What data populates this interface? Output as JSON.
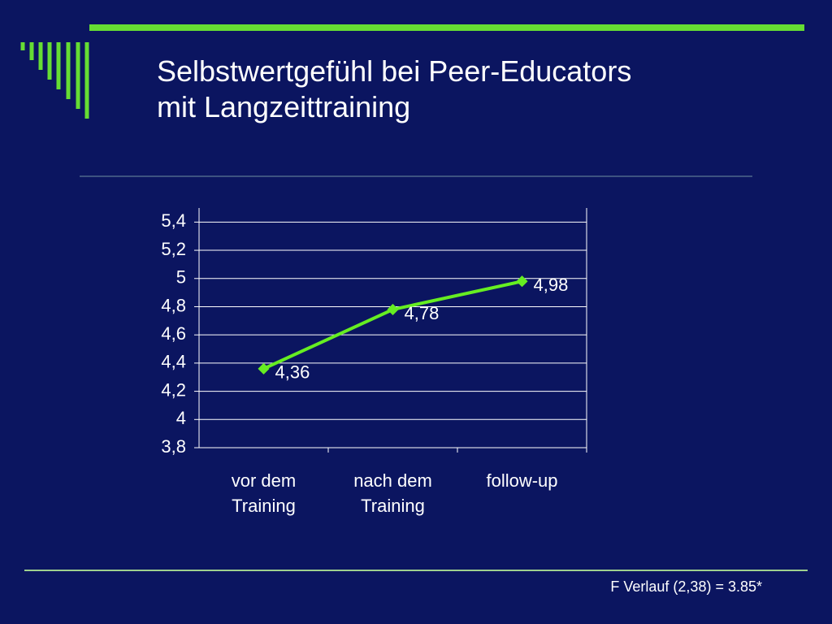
{
  "chart_data": {
    "type": "line",
    "title": "Selbstwertgefühl bei Peer-Educators mit Langzeittraining",
    "categories": [
      "vor dem Training",
      "nach dem Training",
      "follow-up"
    ],
    "series": [
      {
        "name": "Selbstwertgefühl",
        "color": "#66ee22",
        "values": [
          4.36,
          4.78,
          4.98
        ],
        "value_labels": [
          "4,36",
          "4,78",
          "4,98"
        ]
      }
    ],
    "ylim": [
      3.8,
      5.5
    ],
    "yticks": [
      {
        "value": 3.8,
        "label": "3,8"
      },
      4,
      {
        "value": 4.2,
        "label": "4,2"
      },
      {
        "value": 4.4,
        "label": "4,4"
      },
      {
        "value": 4.6,
        "label": "4,6"
      },
      {
        "value": 4.8,
        "label": "4,8"
      },
      5,
      {
        "value": 5.2,
        "label": "5,2"
      },
      {
        "value": 5.4,
        "label": "5,4"
      }
    ],
    "grid": true,
    "annotation": "F Verlauf (2,38) = 3.85*"
  }
}
